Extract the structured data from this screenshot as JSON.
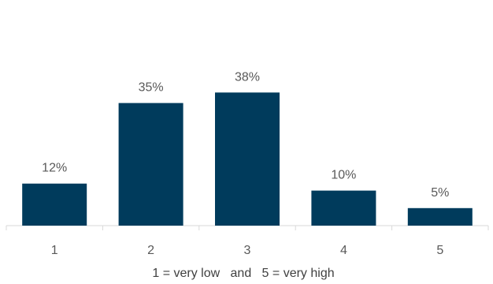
{
  "chart_data": {
    "type": "bar",
    "categories": [
      "1",
      "2",
      "3",
      "4",
      "5"
    ],
    "values": [
      12,
      35,
      38,
      10,
      5
    ],
    "data_labels": [
      "12%",
      "35%",
      "38%",
      "10%",
      "5%"
    ],
    "title": "",
    "xlabel": "1 = very low   and   5 = very high",
    "ylabel": "",
    "ylim": [
      0,
      40
    ],
    "grid": false,
    "legend": "none",
    "bar_color": "#003B5C",
    "axis_color": "#D9D9D9"
  }
}
